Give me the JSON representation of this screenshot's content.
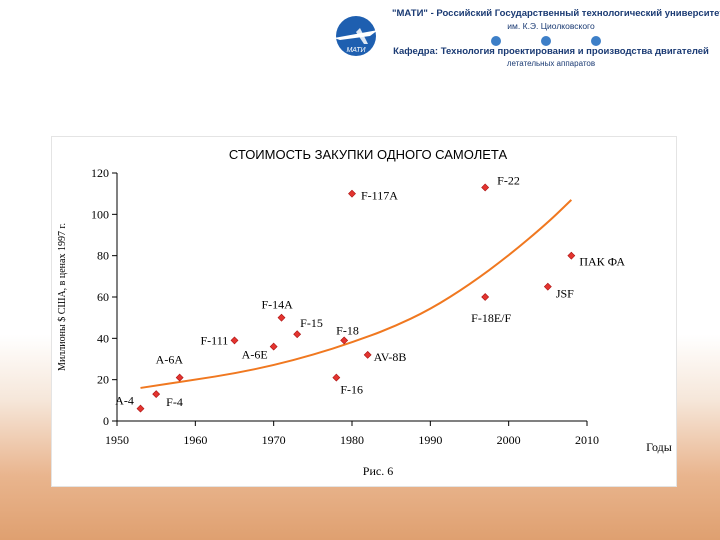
{
  "header": {
    "logo_text": "МАТИ",
    "line1": "\"МАТИ\" - Российский Государственный технологический университет",
    "line2": "им. К.Э. Циолковского",
    "line3": "Кафедра: Технология проектирования и производства двигателей",
    "line4": "летательных аппаратов",
    "logo_color": "#1e5fb0"
  },
  "chart_data": {
    "type": "scatter",
    "title": "СТОИМОСТЬ ЗАКУПКИ ОДНОГО САМОЛЕТА",
    "ylabel": "Миллионы $ США, в ценах 1997 г.",
    "xlabel": "Годы",
    "caption": "Рис. 6",
    "xlim": [
      1950,
      2010
    ],
    "ylim": [
      0,
      120
    ],
    "x_ticks": [
      "1950",
      "1960",
      "1970",
      "1980",
      "1990",
      "2000",
      "2010"
    ],
    "y_ticks": [
      "0",
      "20",
      "40",
      "60",
      "80",
      "100",
      "120"
    ],
    "grid": false,
    "marker_color": "#e3342f",
    "trend_color": "#f07820",
    "points": [
      {
        "label": "A-4",
        "x": 1953,
        "y": 6
      },
      {
        "label": "F-4",
        "x": 1955,
        "y": 13
      },
      {
        "label": "A-6A",
        "x": 1958,
        "y": 21
      },
      {
        "label": "F-111",
        "x": 1965,
        "y": 39
      },
      {
        "label": "A-6E",
        "x": 1970,
        "y": 36
      },
      {
        "label": "F-14A",
        "x": 1971,
        "y": 50
      },
      {
        "label": "F-15",
        "x": 1973,
        "y": 42
      },
      {
        "label": "F-16",
        "x": 1978,
        "y": 21
      },
      {
        "label": "F-18",
        "x": 1979,
        "y": 39
      },
      {
        "label": "F-117A",
        "x": 1980,
        "y": 110
      },
      {
        "label": "AV-8B",
        "x": 1982,
        "y": 32
      },
      {
        "label": "F-22",
        "x": 1997,
        "y": 113
      },
      {
        "label": "F-18E/F",
        "x": 1997,
        "y": 60
      },
      {
        "label": "JSF",
        "x": 2005,
        "y": 65
      },
      {
        "label": "ПАК ФА",
        "x": 2008,
        "y": 80
      }
    ],
    "trend": {
      "x": [
        1953,
        1960,
        1965,
        1970,
        1975,
        1980,
        1985,
        1990,
        1995,
        2000,
        2005,
        2008
      ],
      "y": [
        16,
        20,
        23,
        27,
        32,
        38,
        45,
        54,
        66,
        80,
        96,
        107
      ]
    }
  }
}
